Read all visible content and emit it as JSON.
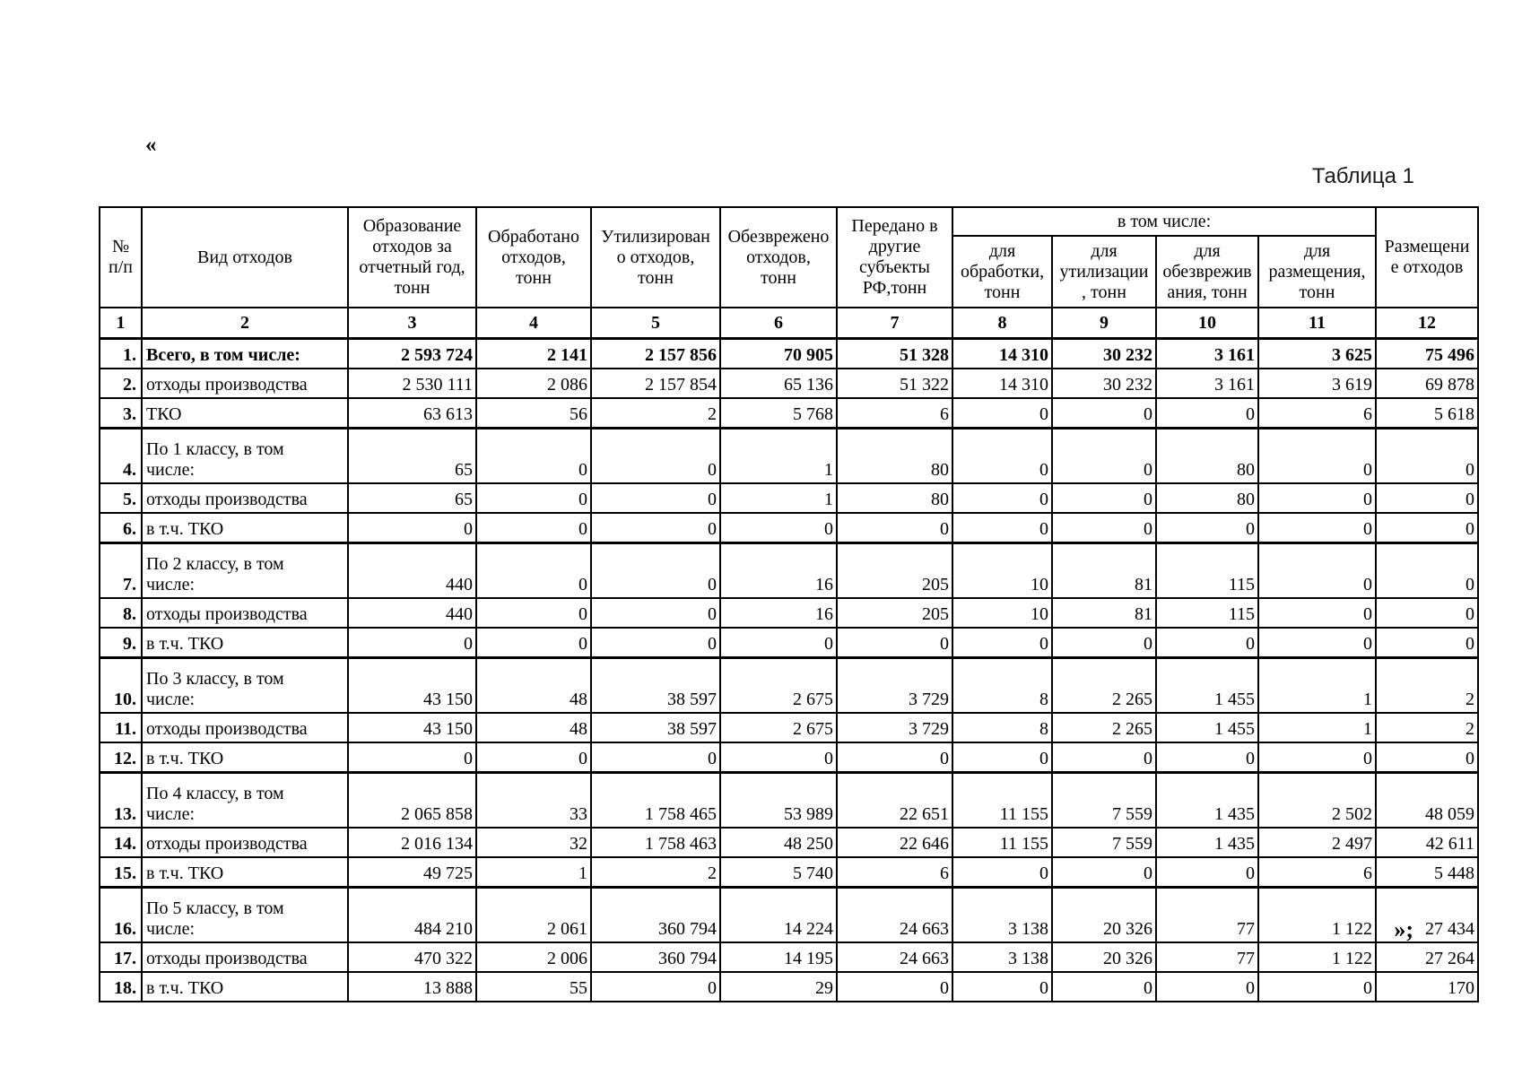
{
  "page": {
    "opening_quote": "«",
    "closing_quote": "»;",
    "caption": "Таблица 1"
  },
  "table": {
    "header": {
      "num": "№\nп/п",
      "kind": "Вид отходов",
      "generated": "Образование\nотходов за\nотчетный год,\nтонн",
      "processed": "Обработано\nотходов,\nтонн",
      "utilized": "Утилизирован\nо отходов,\nтонн",
      "neutralized": "Обезврежено\nотходов,\nтонн",
      "transferred": "Передано в\nдругие\nсубъекты\nРФ,тонн",
      "including": "в том числе:",
      "sub": {
        "for_processing": "для\nобработки,\nтонн",
        "for_utilization": "для\nутилизации\n, тонн",
        "for_neutralization": "для\nобезврежив\nания, тонн",
        "for_disposal": "для\nразмещения,\nтонн"
      },
      "disposal": "Размещени\nе отходов"
    },
    "column_numbers": [
      "1",
      "2",
      "3",
      "4",
      "5",
      "6",
      "7",
      "8",
      "9",
      "10",
      "11",
      "12"
    ],
    "rows": [
      {
        "num": "1.",
        "label": "Всего, в том числе:",
        "bold": true,
        "tall": false,
        "values": [
          "2 593 724",
          "2 141",
          "2 157 856",
          "70 905",
          "51 328",
          "14 310",
          "30 232",
          "3 161",
          "3 625",
          "75 496"
        ]
      },
      {
        "num": "2.",
        "label": "отходы производства",
        "bold": false,
        "tall": false,
        "values": [
          "2 530 111",
          "2 086",
          "2 157 854",
          "65 136",
          "51 322",
          "14 310",
          "30 232",
          "3 161",
          "3 619",
          "69 878"
        ]
      },
      {
        "num": "3.",
        "label": "ТКО",
        "bold": false,
        "tall": false,
        "values": [
          "63 613",
          "56",
          "2",
          "5 768",
          "6",
          "0",
          "0",
          "0",
          "6",
          "5 618"
        ]
      },
      {
        "num": "4.",
        "label": "По 1 классу, в том\nчисле:",
        "bold": false,
        "tall": true,
        "values": [
          "65",
          "0",
          "0",
          "1",
          "80",
          "0",
          "0",
          "80",
          "0",
          "0"
        ]
      },
      {
        "num": "5.",
        "label": "отходы производства",
        "bold": false,
        "tall": false,
        "values": [
          "65",
          "0",
          "0",
          "1",
          "80",
          "0",
          "0",
          "80",
          "0",
          "0"
        ]
      },
      {
        "num": "6.",
        "label": "в т.ч. ТКО",
        "bold": false,
        "tall": false,
        "values": [
          "0",
          "0",
          "0",
          "0",
          "0",
          "0",
          "0",
          "0",
          "0",
          "0"
        ]
      },
      {
        "num": "7.",
        "label": "По 2 классу, в том\nчисле:",
        "bold": false,
        "tall": true,
        "values": [
          "440",
          "0",
          "0",
          "16",
          "205",
          "10",
          "81",
          "115",
          "0",
          "0"
        ]
      },
      {
        "num": "8.",
        "label": "отходы производства",
        "bold": false,
        "tall": false,
        "values": [
          "440",
          "0",
          "0",
          "16",
          "205",
          "10",
          "81",
          "115",
          "0",
          "0"
        ]
      },
      {
        "num": "9.",
        "label": "в т.ч. ТКО",
        "bold": false,
        "tall": false,
        "values": [
          "0",
          "0",
          "0",
          "0",
          "0",
          "0",
          "0",
          "0",
          "0",
          "0"
        ]
      },
      {
        "num": "10.",
        "label": "По 3 классу, в том\nчисле:",
        "bold": false,
        "tall": true,
        "values": [
          "43 150",
          "48",
          "38 597",
          "2 675",
          "3 729",
          "8",
          "2 265",
          "1 455",
          "1",
          "2"
        ]
      },
      {
        "num": "11.",
        "label": "отходы производства",
        "bold": false,
        "tall": false,
        "values": [
          "43 150",
          "48",
          "38 597",
          "2 675",
          "3 729",
          "8",
          "2 265",
          "1 455",
          "1",
          "2"
        ]
      },
      {
        "num": "12.",
        "label": "в т.ч. ТКО",
        "bold": false,
        "tall": false,
        "values": [
          "0",
          "0",
          "0",
          "0",
          "0",
          "0",
          "0",
          "0",
          "0",
          "0"
        ]
      },
      {
        "num": "13.",
        "label": "По 4 классу, в том\nчисле:",
        "bold": false,
        "tall": true,
        "values": [
          "2 065 858",
          "33",
          "1 758 465",
          "53 989",
          "22 651",
          "11 155",
          "7 559",
          "1 435",
          "2 502",
          "48 059"
        ]
      },
      {
        "num": "14.",
        "label": "отходы производства",
        "bold": false,
        "tall": false,
        "values": [
          "2 016 134",
          "32",
          "1 758 463",
          "48 250",
          "22 646",
          "11 155",
          "7 559",
          "1 435",
          "2 497",
          "42 611"
        ]
      },
      {
        "num": "15.",
        "label": "в т.ч. ТКО",
        "bold": false,
        "tall": false,
        "values": [
          "49 725",
          "1",
          "2",
          "5 740",
          "6",
          "0",
          "0",
          "0",
          "6",
          "5 448"
        ]
      },
      {
        "num": "16.",
        "label": "По 5 классу, в том\nчисле:",
        "bold": false,
        "tall": true,
        "values": [
          "484 210",
          "2 061",
          "360 794",
          "14 224",
          "24 663",
          "3 138",
          "20 326",
          "77",
          "1 122",
          "27 434"
        ]
      },
      {
        "num": "17.",
        "label": "отходы производства",
        "bold": false,
        "tall": false,
        "values": [
          "470 322",
          "2 006",
          "360 794",
          "14 195",
          "24 663",
          "3 138",
          "20 326",
          "77",
          "1 122",
          "27 264"
        ]
      },
      {
        "num": "18.",
        "label": "в т.ч. ТКО",
        "bold": false,
        "tall": false,
        "values": [
          "13 888",
          "55",
          "0",
          "29",
          "0",
          "0",
          "0",
          "0",
          "0",
          "170"
        ]
      }
    ]
  }
}
